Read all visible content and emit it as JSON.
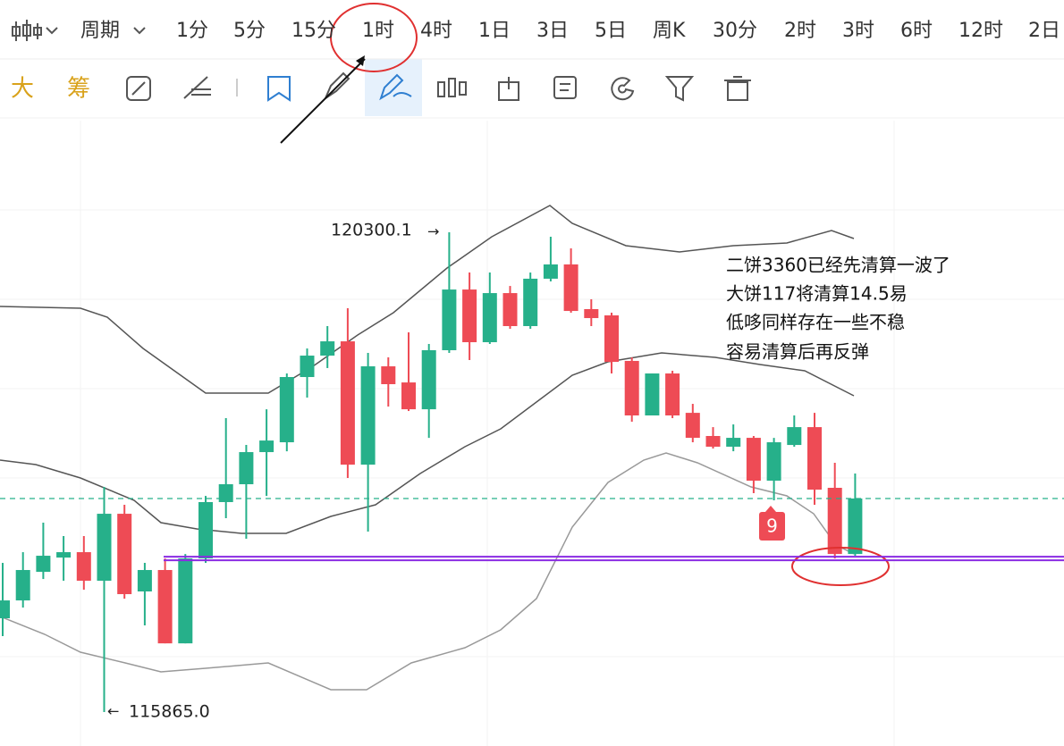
{
  "toolbar": {
    "period_menu": "周期",
    "periods": [
      "1分",
      "5分",
      "15分",
      "1时",
      "4时",
      "1日",
      "3日",
      "5日",
      "周K",
      "30分",
      "2时",
      "3时",
      "6时",
      "12时",
      "2日"
    ],
    "active_period": 3,
    "tools": [
      "大",
      "筹"
    ]
  },
  "chart_data": {
    "type": "candlestick",
    "up_color": "#26b08a",
    "down_color": "#ee4b55",
    "candles": [
      [
        116732,
        117244,
        116567,
        116897
      ],
      [
        116897,
        117343,
        116831,
        117178
      ],
      [
        117161,
        117616,
        117095,
        117310
      ],
      [
        117293,
        117492,
        117079,
        117343
      ],
      [
        117343,
        117492,
        116996,
        117079
      ],
      [
        117079,
        117946,
        115865.0,
        117698
      ],
      [
        117698,
        117781,
        116913,
        116955
      ],
      [
        116980,
        117244,
        116666,
        117178
      ],
      [
        117178,
        117285,
        116500,
        116500
      ],
      [
        116500,
        117326,
        116500,
        117285
      ],
      [
        117285,
        117863,
        117244,
        117806
      ],
      [
        117806,
        118582,
        117657,
        117971
      ],
      [
        117971,
        118334,
        117467,
        118268
      ],
      [
        118268,
        118664,
        117863,
        118375
      ],
      [
        118359,
        118995,
        118276,
        118962
      ],
      [
        118962,
        119226,
        118772,
        119160
      ],
      [
        119160,
        119433,
        119045,
        119292
      ],
      [
        119292,
        119598,
        118029,
        118152
      ],
      [
        118152,
        119185,
        117533,
        119061
      ],
      [
        119061,
        119144,
        118689,
        118896
      ],
      [
        118912,
        119375,
        118648,
        118664
      ],
      [
        118664,
        119268,
        118400,
        119210
      ],
      [
        119210,
        120300.1,
        119185,
        119771
      ],
      [
        119771,
        119928,
        119119,
        119284
      ],
      [
        119284,
        119928,
        119268,
        119738
      ],
      [
        119738,
        119804,
        119408,
        119433
      ],
      [
        119433,
        119928,
        119408,
        119871
      ],
      [
        119871,
        120259,
        119846,
        120003
      ],
      [
        120003,
        120151,
        119557,
        119573
      ],
      [
        119590,
        119681,
        119433,
        119507
      ],
      [
        119532,
        119557,
        118995,
        119102
      ],
      [
        119111,
        119144,
        118549,
        118607
      ],
      [
        118607,
        118995,
        118607,
        118995
      ],
      [
        118995,
        119020,
        118582,
        118607
      ],
      [
        118631,
        118714,
        118359,
        118400
      ],
      [
        118417,
        118499,
        118301,
        118318
      ],
      [
        118318,
        118524,
        118276,
        118400
      ],
      [
        118400,
        118417,
        117888,
        118004
      ],
      [
        118004,
        118400,
        117822,
        118359
      ],
      [
        118334,
        118607,
        118318,
        118499
      ],
      [
        118499,
        118631,
        117781,
        117921
      ],
      [
        117938,
        118169,
        117285,
        117326
      ],
      [
        117326,
        118070,
        117310,
        117839
      ]
    ],
    "high_label": 120300.1,
    "low_label": {
      "value": 115865.0,
      "label": "115865.0"
    },
    "support_line": 117285,
    "marker": "9",
    "annotation": [
      "二饼3360已经先清算一波了",
      "大饼117将清算14.5易",
      "低哆同样存在一些不稳",
      "容易清算后再反弹"
    ]
  }
}
